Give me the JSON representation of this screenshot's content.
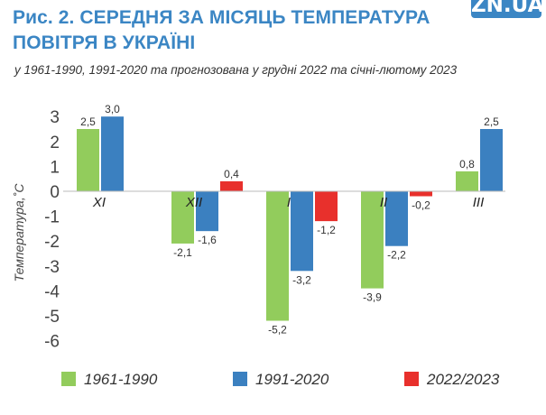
{
  "header": {
    "title": "Рис. 2. СЕРЕДНЯ ЗА МІСЯЦЬ ТЕМПЕРАТУРА ПОВІТРЯ В УКРАЇНІ",
    "subtitle": "у 1961-1990, 1991-2020 та прогнозована у грудні 2022  та січні-лютому 2023",
    "logo": "ZN.UA"
  },
  "colors": {
    "title": "#3b86c4",
    "series": [
      "#92cc5c",
      "#3b80c0",
      "#e8302c"
    ]
  },
  "chart_data": {
    "type": "bar",
    "title": "Рис. 2. СЕРЕДНЯ ЗА МІСЯЦЬ ТЕМПЕРАТУРА ПОВІТРЯ В УКРАЇНІ",
    "ylabel": "Температура,˚С",
    "xlabel": "",
    "ylim": [
      -6,
      3
    ],
    "yticks": [
      3,
      2,
      1,
      0,
      -1,
      -2,
      -3,
      -4,
      -5,
      -6
    ],
    "grid": false,
    "legend": "bottom",
    "categories": [
      "XI",
      "XII",
      "I",
      "II",
      "III"
    ],
    "series": [
      {
        "name": "1961-1990",
        "color": "#92cc5c",
        "values": [
          2.5,
          -2.1,
          -5.2,
          -3.9,
          0.8
        ],
        "labels": [
          "2,5",
          "-2,1",
          "-5,2",
          "-3,9",
          "0,8"
        ]
      },
      {
        "name": "1991-2020",
        "color": "#3b80c0",
        "values": [
          3.0,
          -1.6,
          -3.2,
          -2.2,
          2.5
        ],
        "labels": [
          "3,0",
          "-1,6",
          "-3,2",
          "-2,2",
          "2,5"
        ]
      },
      {
        "name": "2022/2023",
        "color": "#e8302c",
        "values": [
          null,
          0.4,
          -1.2,
          -0.2,
          null
        ],
        "labels": [
          "",
          "0,4",
          "-1,2",
          "-0,2",
          ""
        ]
      }
    ]
  }
}
